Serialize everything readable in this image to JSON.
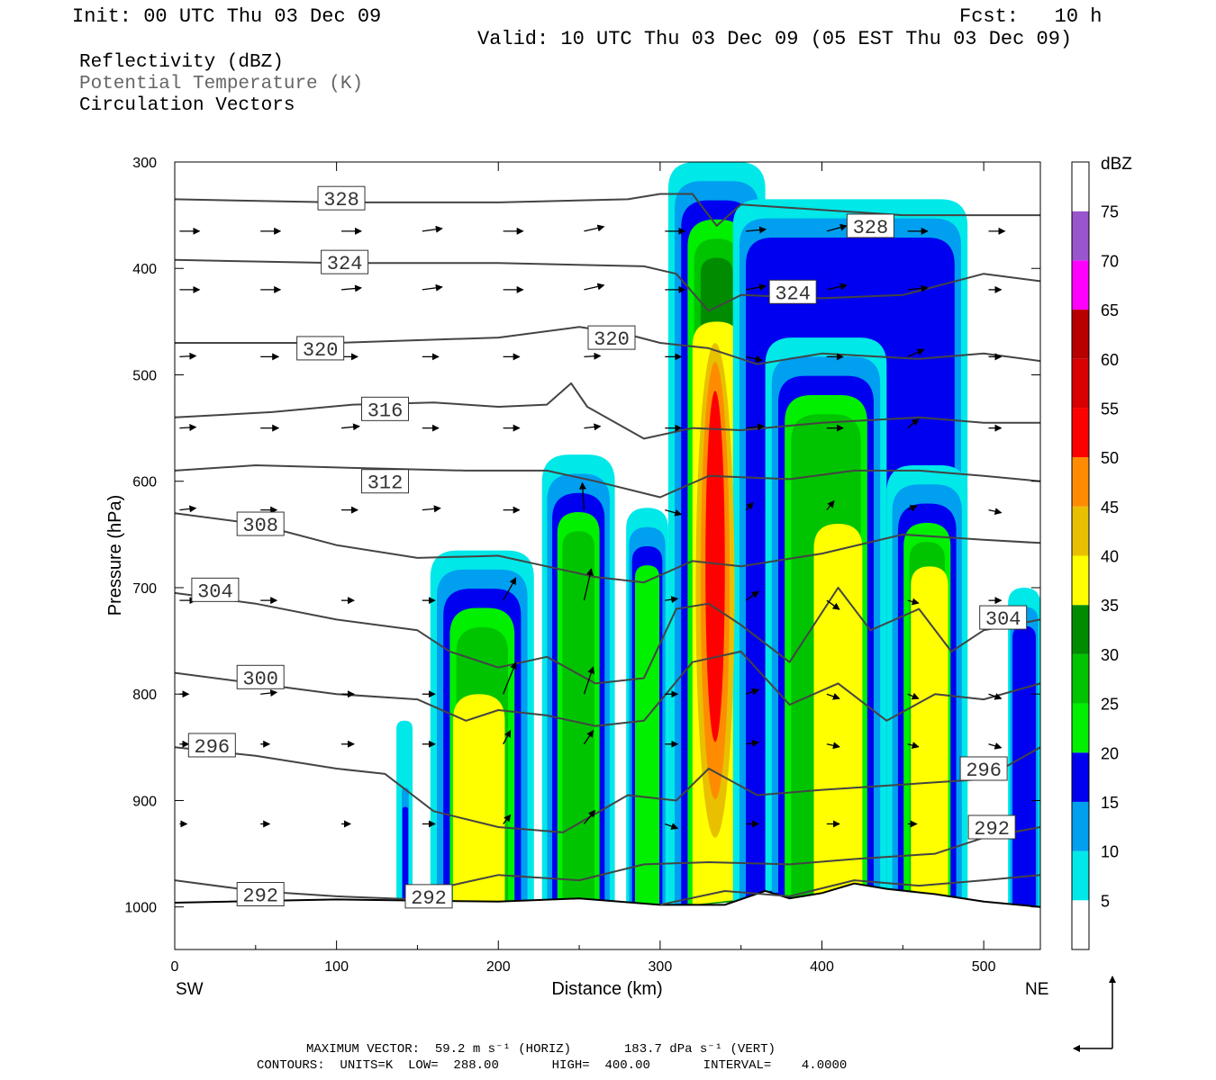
{
  "header": {
    "init": "Init: 00 UTC Thu 03 Dec 09",
    "fcst": "Fcst:   10 h",
    "valid": "Valid: 10 UTC Thu 03 Dec 09 (05 EST Thu 03 Dec 09)"
  },
  "fields": [
    "Reflectivity (dBZ)",
    "Potential Temperature (K)",
    "Circulation Vectors"
  ],
  "footer": {
    "max_vector": "MAXIMUM VECTOR:  59.2 m s⁻¹ (HORIZ)       183.7 dPa s⁻¹ (VERT)",
    "contours": "CONTOURS:  UNITS=K  LOW=  288.00       HIGH=  400.00       INTERVAL=    4.0000"
  },
  "chart_data": {
    "type": "cross-section",
    "xlabel": "Distance (km)",
    "ylabel": "Pressure (hPa)",
    "xlim": [
      0,
      535
    ],
    "ylim": [
      1040,
      300
    ],
    "x_ticks": [
      0,
      100,
      200,
      300,
      400,
      500
    ],
    "y_ticks": [
      300,
      400,
      500,
      600,
      700,
      800,
      900,
      1000
    ],
    "end_labels": {
      "left": "SW",
      "right": "NE"
    },
    "colorbar": {
      "unit": "dBZ",
      "levels": [
        5,
        10,
        15,
        20,
        25,
        30,
        35,
        40,
        45,
        50,
        55,
        60,
        65,
        70,
        75
      ],
      "colors": [
        "#ffffff",
        "#00e8e8",
        "#009ff0",
        "#0000f0",
        "#00f000",
        "#00c400",
        "#008c00",
        "#ffff00",
        "#e8c000",
        "#ff8c00",
        "#ff0000",
        "#d80000",
        "#b80000",
        "#ff00ff",
        "#9955cc",
        "#ffffff"
      ]
    },
    "reflectivity_cells": [
      {
        "x0": 137,
        "x1": 147,
        "ptop": 825,
        "cat": 1
      },
      {
        "x0": 140,
        "x1": 145,
        "ptop": 870,
        "cat": 3
      },
      {
        "x0": 158,
        "x1": 222,
        "ptop": 665,
        "cat": 5,
        "core_x0": 172,
        "core_x1": 204,
        "core_ptop": 800
      },
      {
        "x0": 227,
        "x1": 272,
        "ptop": 575,
        "cat": 5
      },
      {
        "x0": 279,
        "x1": 305,
        "ptop": 625,
        "cat": 4
      },
      {
        "x0": 305,
        "x1": 365,
        "ptop": 300,
        "cat": 6,
        "core_x0": 320,
        "core_x1": 350,
        "core_ptop": 450
      },
      {
        "x0": 345,
        "x1": 490,
        "ptop": 335,
        "cat": 3
      },
      {
        "x0": 365,
        "x1": 440,
        "ptop": 465,
        "cat": 5,
        "core_x0": 395,
        "core_x1": 425,
        "core_ptop": 640
      },
      {
        "x0": 440,
        "x1": 490,
        "ptop": 585,
        "cat": 5,
        "core_x0": 455,
        "core_x1": 478,
        "core_ptop": 680
      },
      {
        "x0": 515,
        "x1": 535,
        "ptop": 700,
        "cat": 3
      }
    ],
    "max_core": {
      "x": 334,
      "ptop": 600,
      "pbot": 715,
      "value": 50
    },
    "theta_contours": [
      {
        "value": 328,
        "pts": [
          [
            0,
            335
          ],
          [
            100,
            338
          ],
          [
            200,
            338
          ],
          [
            280,
            335
          ],
          [
            300,
            330
          ],
          [
            320,
            330
          ],
          [
            335,
            360
          ],
          [
            350,
            340
          ],
          [
            400,
            345
          ],
          [
            450,
            350
          ],
          [
            500,
            350
          ],
          [
            535,
            350
          ]
        ],
        "labels": [
          [
            103,
            334
          ],
          [
            430,
            360
          ]
        ]
      },
      {
        "value": 324,
        "pts": [
          [
            0,
            392
          ],
          [
            100,
            395
          ],
          [
            200,
            395
          ],
          [
            290,
            398
          ],
          [
            310,
            405
          ],
          [
            330,
            440
          ],
          [
            350,
            425
          ],
          [
            400,
            428
          ],
          [
            450,
            425
          ],
          [
            500,
            405
          ],
          [
            535,
            412
          ]
        ],
        "labels": [
          [
            105,
            394
          ],
          [
            382,
            422
          ]
        ]
      },
      {
        "value": 320,
        "pts": [
          [
            0,
            470
          ],
          [
            100,
            470
          ],
          [
            200,
            465
          ],
          [
            250,
            455
          ],
          [
            280,
            462
          ],
          [
            300,
            470
          ],
          [
            330,
            475
          ],
          [
            360,
            490
          ],
          [
            400,
            480
          ],
          [
            460,
            485
          ],
          [
            500,
            480
          ],
          [
            535,
            487
          ]
        ],
        "labels": [
          [
            90,
            475
          ],
          [
            270,
            465
          ]
        ]
      },
      {
        "value": 316,
        "pts": [
          [
            0,
            540
          ],
          [
            60,
            535
          ],
          [
            110,
            528
          ],
          [
            160,
            526
          ],
          [
            200,
            530
          ],
          [
            230,
            528
          ],
          [
            245,
            508
          ],
          [
            255,
            530
          ],
          [
            290,
            560
          ],
          [
            320,
            550
          ],
          [
            350,
            552
          ],
          [
            400,
            545
          ],
          [
            460,
            540
          ],
          [
            500,
            545
          ],
          [
            535,
            545
          ]
        ],
        "labels": [
          [
            130,
            532
          ]
        ]
      },
      {
        "value": 312,
        "pts": [
          [
            0,
            590
          ],
          [
            50,
            585
          ],
          [
            100,
            587
          ],
          [
            180,
            590
          ],
          [
            230,
            590
          ],
          [
            260,
            600
          ],
          [
            300,
            615
          ],
          [
            330,
            595
          ],
          [
            380,
            598
          ],
          [
            420,
            590
          ],
          [
            460,
            590
          ],
          [
            500,
            595
          ],
          [
            535,
            600
          ]
        ],
        "labels": [
          [
            130,
            600
          ]
        ]
      },
      {
        "value": 308,
        "pts": [
          [
            0,
            630
          ],
          [
            50,
            640
          ],
          [
            100,
            660
          ],
          [
            150,
            672
          ],
          [
            200,
            670
          ],
          [
            230,
            680
          ],
          [
            260,
            690
          ],
          [
            290,
            695
          ],
          [
            320,
            675
          ],
          [
            350,
            680
          ],
          [
            400,
            668
          ],
          [
            450,
            650
          ],
          [
            500,
            655
          ],
          [
            535,
            658
          ]
        ],
        "labels": [
          [
            53,
            640
          ]
        ]
      },
      {
        "value": 304,
        "pts": [
          [
            0,
            705
          ],
          [
            50,
            715
          ],
          [
            100,
            730
          ],
          [
            150,
            740
          ],
          [
            170,
            760
          ],
          [
            200,
            775
          ],
          [
            230,
            765
          ],
          [
            260,
            790
          ],
          [
            290,
            785
          ],
          [
            310,
            720
          ],
          [
            330,
            715
          ],
          [
            350,
            735
          ],
          [
            380,
            770
          ],
          [
            410,
            700
          ],
          [
            430,
            740
          ],
          [
            460,
            720
          ],
          [
            480,
            760
          ],
          [
            500,
            740
          ],
          [
            535,
            730
          ]
        ],
        "labels": [
          [
            25,
            702
          ],
          [
            512,
            728
          ]
        ]
      },
      {
        "value": 300,
        "pts": [
          [
            0,
            780
          ],
          [
            50,
            790
          ],
          [
            100,
            800
          ],
          [
            150,
            805
          ],
          [
            180,
            825
          ],
          [
            200,
            815
          ],
          [
            230,
            820
          ],
          [
            260,
            830
          ],
          [
            290,
            825
          ],
          [
            320,
            770
          ],
          [
            350,
            760
          ],
          [
            380,
            810
          ],
          [
            410,
            790
          ],
          [
            440,
            825
          ],
          [
            470,
            800
          ],
          [
            500,
            805
          ],
          [
            535,
            790
          ]
        ],
        "labels": [
          [
            53,
            784
          ]
        ]
      },
      {
        "value": 296,
        "pts": [
          [
            0,
            850
          ],
          [
            50,
            858
          ],
          [
            100,
            870
          ],
          [
            130,
            875
          ],
          [
            160,
            910
          ],
          [
            200,
            925
          ],
          [
            240,
            930
          ],
          [
            280,
            895
          ],
          [
            310,
            900
          ],
          [
            330,
            870
          ],
          [
            360,
            895
          ],
          [
            400,
            890
          ],
          [
            450,
            885
          ],
          [
            500,
            880
          ],
          [
            535,
            850
          ]
        ],
        "labels": [
          [
            23,
            848
          ],
          [
            500,
            870
          ]
        ]
      },
      {
        "value": 292,
        "pts": [
          [
            0,
            975
          ],
          [
            50,
            985
          ],
          [
            100,
            990
          ],
          [
            150,
            993
          ],
          [
            170,
            980
          ],
          [
            200,
            970
          ],
          [
            250,
            975
          ],
          [
            290,
            960
          ],
          [
            330,
            958
          ],
          [
            380,
            960
          ],
          [
            420,
            955
          ],
          [
            470,
            950
          ],
          [
            500,
            935
          ],
          [
            535,
            925
          ]
        ],
        "labels": [
          [
            53,
            988
          ],
          [
            157,
            990
          ],
          [
            505,
            925
          ]
        ]
      },
      {
        "value": 292,
        "pts": [
          [
            300,
            998
          ],
          [
            340,
            985
          ],
          [
            380,
            990
          ],
          [
            420,
            975
          ],
          [
            460,
            980
          ],
          [
            500,
            975
          ],
          [
            535,
            970
          ]
        ],
        "labels": []
      }
    ],
    "terrain": [
      [
        0,
        996
      ],
      [
        100,
        993
      ],
      [
        200,
        995
      ],
      [
        250,
        992
      ],
      [
        300,
        998
      ],
      [
        340,
        998
      ],
      [
        365,
        985
      ],
      [
        380,
        992
      ],
      [
        400,
        987
      ],
      [
        420,
        978
      ],
      [
        440,
        983
      ],
      [
        470,
        988
      ],
      [
        500,
        995
      ],
      [
        535,
        1000
      ]
    ],
    "vectors": [
      {
        "p": 365,
        "x": [
          3,
          53,
          103,
          153,
          203,
          253,
          303,
          353,
          403,
          453,
          503
        ],
        "dx": [
          22,
          22,
          22,
          22,
          22,
          22,
          22,
          22,
          22,
          22,
          18
        ],
        "dy": [
          0,
          0,
          0,
          -3,
          0,
          -5,
          0,
          -2,
          -6,
          0,
          0
        ]
      },
      {
        "p": 420,
        "x": [
          3,
          53,
          103,
          153,
          203,
          253,
          303,
          353,
          403,
          453,
          503
        ],
        "dx": [
          22,
          22,
          22,
          22,
          22,
          22,
          22,
          22,
          22,
          22,
          14
        ],
        "dy": [
          0,
          0,
          -2,
          -3,
          0,
          -5,
          0,
          -4,
          -5,
          -2,
          0
        ]
      },
      {
        "p": 483,
        "x": [
          3,
          53,
          103,
          153,
          203,
          253,
          303,
          353,
          403,
          453,
          503
        ],
        "dx": [
          18,
          20,
          18,
          18,
          18,
          18,
          18,
          18,
          18,
          18,
          14
        ],
        "dy": [
          -1,
          0,
          0,
          0,
          0,
          -1,
          0,
          4,
          0,
          -8,
          0
        ]
      },
      {
        "p": 550,
        "x": [
          3,
          53,
          103,
          153,
          203,
          253,
          303,
          353,
          403,
          453,
          503
        ],
        "dx": [
          18,
          20,
          20,
          18,
          18,
          18,
          18,
          20,
          18,
          12,
          14
        ],
        "dy": [
          -1,
          0,
          -2,
          0,
          0,
          -2,
          0,
          -2,
          0,
          -10,
          0
        ]
      },
      {
        "p": 627,
        "x": [
          3,
          53,
          103,
          153,
          203,
          253,
          303,
          353,
          403,
          453,
          503
        ],
        "dx": [
          18,
          18,
          18,
          20,
          18,
          -2,
          18,
          8,
          8,
          10,
          14
        ],
        "dy": [
          -2,
          0,
          0,
          -2,
          0,
          -30,
          5,
          -8,
          -10,
          -5,
          3
        ]
      },
      {
        "p": 712,
        "x": [
          3,
          53,
          103,
          153,
          203,
          253,
          303,
          353,
          403,
          453,
          503
        ],
        "dx": [
          18,
          18,
          14,
          14,
          14,
          8,
          14,
          14,
          14,
          12,
          14
        ],
        "dy": [
          0,
          0,
          0,
          0,
          -25,
          -35,
          -2,
          -10,
          10,
          3,
          0
        ]
      },
      {
        "p": 800,
        "x": [
          3,
          53,
          103,
          153,
          203,
          253,
          303,
          353,
          403,
          453,
          503
        ],
        "dx": [
          10,
          18,
          14,
          14,
          14,
          10,
          14,
          14,
          14,
          12,
          14
        ],
        "dy": [
          0,
          -2,
          0,
          0,
          -35,
          -30,
          0,
          -5,
          5,
          5,
          5
        ]
      },
      {
        "p": 847,
        "x": [
          3,
          53,
          103,
          153,
          203,
          253,
          303,
          353,
          403,
          453,
          503
        ],
        "dx": [
          10,
          10,
          14,
          14,
          8,
          10,
          14,
          14,
          14,
          12,
          14
        ],
        "dy": [
          0,
          0,
          0,
          0,
          -15,
          -15,
          0,
          -2,
          3,
          3,
          4
        ]
      },
      {
        "p": 922,
        "x": [
          3,
          53,
          103,
          153,
          203,
          253,
          303,
          353,
          403,
          453,
          503
        ],
        "dx": [
          8,
          10,
          10,
          14,
          8,
          12,
          14,
          14,
          14,
          10,
          14
        ],
        "dy": [
          0,
          0,
          0,
          0,
          -10,
          -15,
          5,
          0,
          0,
          0,
          0
        ]
      }
    ]
  }
}
